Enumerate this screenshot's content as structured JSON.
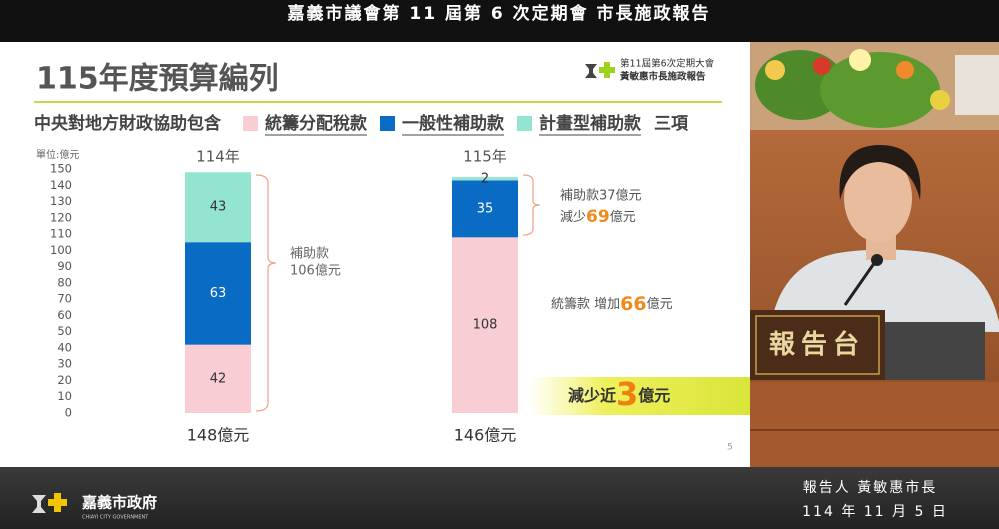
{
  "header": {
    "title": "嘉義市議會第 11 屆第 6 次定期會 市長施政報告"
  },
  "slide": {
    "title": "115年度預算編列",
    "logo_lines": [
      "第11屆第6次定期大會",
      "黃敏惠市長施政報告"
    ],
    "subtitle_lead": "中央對地方財政協助包含",
    "subtitle_tail": "三項",
    "page_number": "5"
  },
  "chart_data": {
    "type": "bar",
    "stacked": true,
    "unit_label": "單位:億元",
    "categories": [
      "114年",
      "115年"
    ],
    "total_labels": [
      "148億元",
      "146億元"
    ],
    "series": [
      {
        "name": "統籌分配稅款",
        "color": "#f9cdd4",
        "values": [
          42,
          108
        ]
      },
      {
        "name": "一般性補助款",
        "color": "#0a6bc4",
        "values": [
          63,
          35
        ]
      },
      {
        "name": "計畫型補助款",
        "color": "#93e4d0",
        "values": [
          43,
          2
        ]
      }
    ],
    "ylim": [
      0,
      150
    ],
    "yticks": [
      0,
      10,
      20,
      30,
      40,
      50,
      60,
      70,
      80,
      90,
      100,
      110,
      120,
      130,
      140,
      150
    ],
    "annotations": {
      "bracket_114": [
        "補助款",
        "106億元"
      ],
      "bracket_115_line1": "補助款37億元",
      "bracket_115_line2": [
        "減少",
        "69",
        "億元"
      ],
      "distribution_note": [
        "統籌款 增加",
        "66",
        "億元"
      ],
      "banner": [
        "減少近",
        "3",
        "億元"
      ]
    }
  },
  "photo": {
    "podium_sign": "報告台"
  },
  "footer": {
    "logo_text": "嘉義市政府",
    "logo_subtext": "CHIAYI CITY GOVERNMENT",
    "reporter": "報告人 黃敏惠市長",
    "date": "114 年 11 月 5 日"
  }
}
